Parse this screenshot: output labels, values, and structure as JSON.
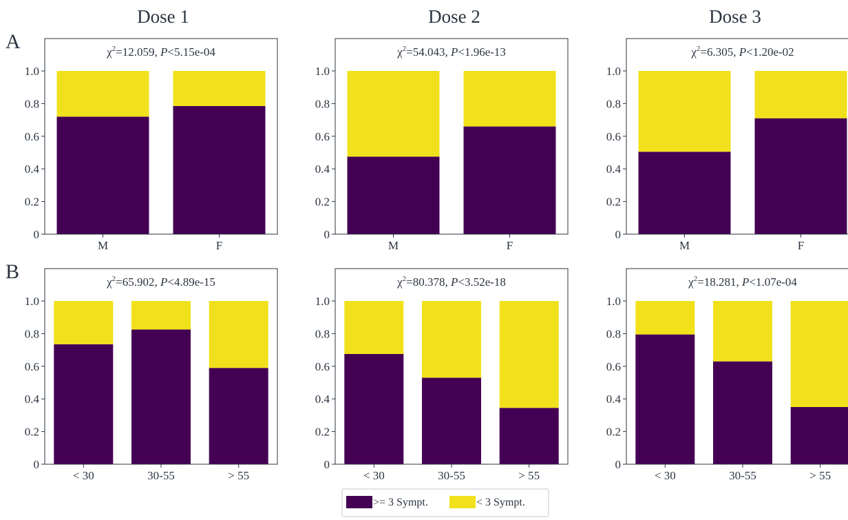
{
  "colors": {
    "ge3": "#440154",
    "lt3": "#f0e11c",
    "axis": "#2b3440",
    "text": "#2b3440"
  },
  "column_titles": [
    "Dose 1",
    "Dose 2",
    "Dose 3"
  ],
  "row_labels": [
    "A",
    "B"
  ],
  "legend": {
    "ge3_label": ">= 3 Sympt.",
    "lt3_label": "< 3 Sympt."
  },
  "chart_data": [
    {
      "type": "bar",
      "stacked": true,
      "row": "A",
      "dose": "Dose 1",
      "stat": {
        "chi2": "12.059",
        "p": "<5.15e-04"
      },
      "categories": [
        "M",
        "F"
      ],
      "series": [
        {
          "name": ">= 3 Sympt.",
          "values": [
            0.72,
            0.785
          ]
        },
        {
          "name": "< 3 Sympt.",
          "values": [
            0.28,
            0.215
          ]
        }
      ],
      "ylim": [
        0,
        1
      ],
      "yticks": [
        "0",
        "0.2",
        "0.4",
        "0.6",
        "0.8",
        "1.0"
      ]
    },
    {
      "type": "bar",
      "stacked": true,
      "row": "A",
      "dose": "Dose 2",
      "stat": {
        "chi2": "54.043",
        "p": "<1.96e-13"
      },
      "categories": [
        "M",
        "F"
      ],
      "series": [
        {
          "name": ">= 3 Sympt.",
          "values": [
            0.475,
            0.66
          ]
        },
        {
          "name": "< 3 Sympt.",
          "values": [
            0.525,
            0.34
          ]
        }
      ],
      "ylim": [
        0,
        1
      ],
      "yticks": [
        "0",
        "0.2",
        "0.4",
        "0.6",
        "0.8",
        "1.0"
      ]
    },
    {
      "type": "bar",
      "stacked": true,
      "row": "A",
      "dose": "Dose 3",
      "stat": {
        "chi2": "6.305",
        "p": "<1.20e-02"
      },
      "categories": [
        "M",
        "F"
      ],
      "series": [
        {
          "name": ">= 3 Sympt.",
          "values": [
            0.505,
            0.71
          ]
        },
        {
          "name": "< 3 Sympt.",
          "values": [
            0.495,
            0.29
          ]
        }
      ],
      "ylim": [
        0,
        1
      ],
      "yticks": [
        "0",
        "0.2",
        "0.4",
        "0.6",
        "0.8",
        "1.0"
      ]
    },
    {
      "type": "bar",
      "stacked": true,
      "row": "B",
      "dose": "Dose 1",
      "stat": {
        "chi2": "65.902",
        "p": "<4.89e-15"
      },
      "categories": [
        "< 30",
        "30-55",
        "> 55"
      ],
      "series": [
        {
          "name": ">= 3 Sympt.",
          "values": [
            0.735,
            0.825,
            0.59
          ]
        },
        {
          "name": "< 3 Sympt.",
          "values": [
            0.265,
            0.175,
            0.41
          ]
        }
      ],
      "ylim": [
        0,
        1
      ],
      "yticks": [
        "0",
        "0.2",
        "0.4",
        "0.6",
        "0.8",
        "1.0"
      ]
    },
    {
      "type": "bar",
      "stacked": true,
      "row": "B",
      "dose": "Dose 2",
      "stat": {
        "chi2": "80.378",
        "p": "<3.52e-18"
      },
      "categories": [
        "< 30",
        "30-55",
        "> 55"
      ],
      "series": [
        {
          "name": ">= 3 Sympt.",
          "values": [
            0.675,
            0.53,
            0.345
          ]
        },
        {
          "name": "< 3 Sympt.",
          "values": [
            0.325,
            0.47,
            0.655
          ]
        }
      ],
      "ylim": [
        0,
        1
      ],
      "yticks": [
        "0",
        "0.2",
        "0.4",
        "0.6",
        "0.8",
        "1.0"
      ]
    },
    {
      "type": "bar",
      "stacked": true,
      "row": "B",
      "dose": "Dose 3",
      "stat": {
        "chi2": "18.281",
        "p": "<1.07e-04"
      },
      "categories": [
        "< 30",
        "30-55",
        "> 55"
      ],
      "series": [
        {
          "name": ">= 3 Sympt.",
          "values": [
            0.795,
            0.63,
            0.35
          ]
        },
        {
          "name": "< 3 Sympt.",
          "values": [
            0.205,
            0.37,
            0.65
          ]
        }
      ],
      "ylim": [
        0,
        1
      ],
      "yticks": [
        "0",
        "0.2",
        "0.4",
        "0.6",
        "0.8",
        "1.0"
      ]
    }
  ]
}
